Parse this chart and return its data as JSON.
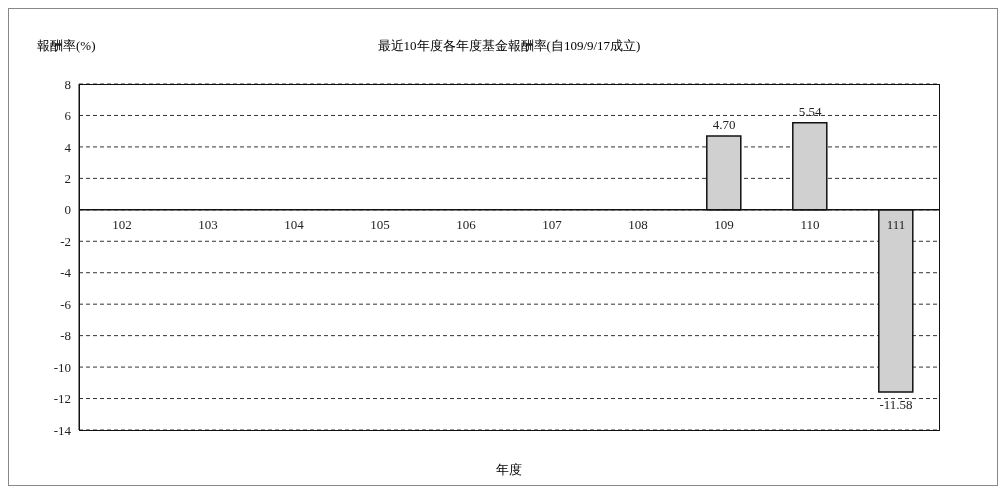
{
  "chart_data": {
    "type": "bar",
    "title": "最近10年度各年度基金報酬率(自109/9/17成立)",
    "ylabel": "報酬率(%)",
    "xlabel": "年度",
    "categories": [
      "102",
      "103",
      "104",
      "105",
      "106",
      "107",
      "108",
      "109",
      "110",
      "111"
    ],
    "values": [
      null,
      null,
      null,
      null,
      null,
      null,
      null,
      4.7,
      5.54,
      -11.58
    ],
    "value_labels": [
      null,
      null,
      null,
      null,
      null,
      null,
      null,
      "4.70",
      "5.54",
      "-11.58"
    ],
    "color": "#d0d0d0",
    "ylim": [
      -14,
      8
    ],
    "yticks": [
      -14,
      -12,
      -10,
      -8,
      -6,
      -4,
      -2,
      0,
      2,
      4,
      6,
      8
    ],
    "grid": "y"
  }
}
